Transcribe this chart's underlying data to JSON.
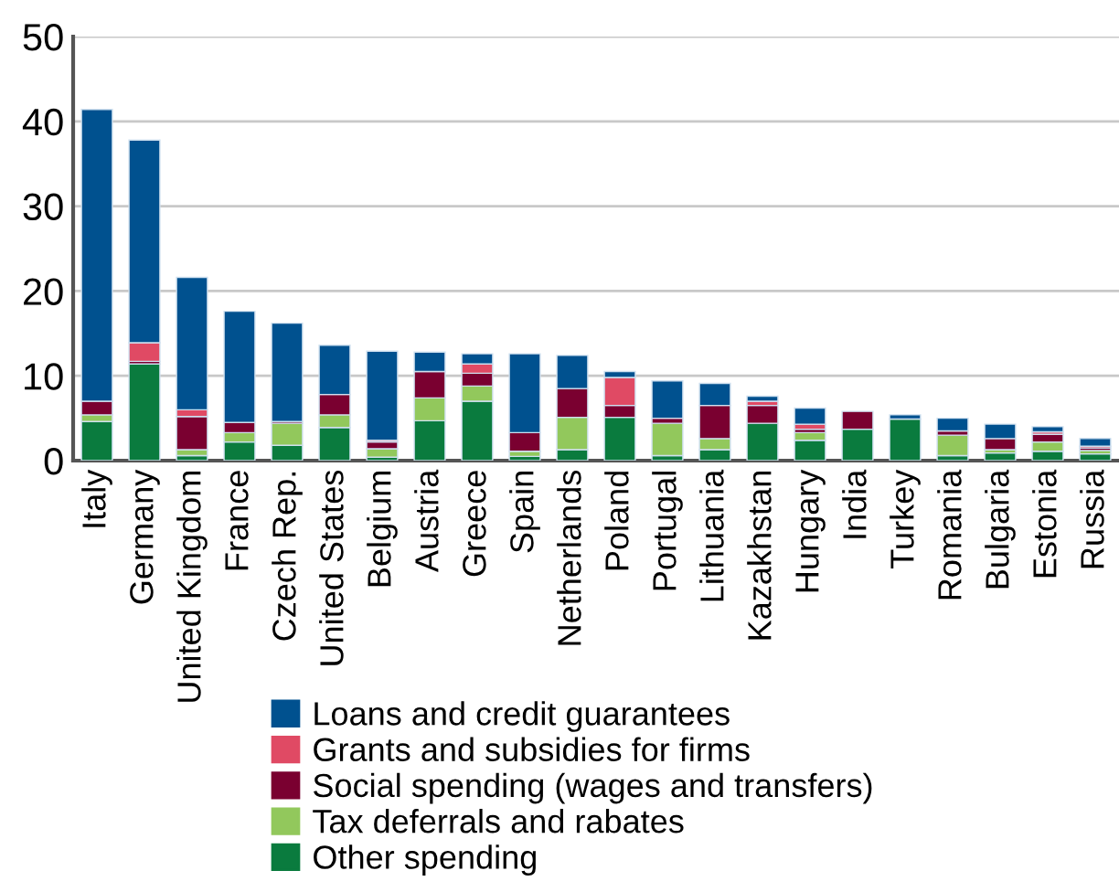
{
  "chart_data": {
    "type": "bar",
    "stacked": true,
    "categories": [
      "Italy",
      "Germany",
      "United Kingdom",
      "France",
      "Czech Rep.",
      "United States",
      "Belgium",
      "Austria",
      "Greece",
      "Spain",
      "Netherlands",
      "Poland",
      "Portugal",
      "Lithuania",
      "Kazakhstan",
      "Hungary",
      "India",
      "Turkey",
      "Romania",
      "Bulgaria",
      "Estonia",
      "Russia"
    ],
    "series": [
      {
        "name": "Other spending",
        "color": "#0a7b3e",
        "values": [
          4.6,
          11.4,
          0.6,
          2.2,
          1.8,
          3.9,
          0.4,
          4.7,
          7.0,
          0.5,
          1.3,
          5.1,
          0.6,
          1.3,
          4.4,
          2.4,
          3.7,
          4.9,
          0.6,
          0.9,
          1.1,
          0.8
        ]
      },
      {
        "name": "Tax deferrals and rabates",
        "color": "#92c85c",
        "values": [
          0.8,
          0,
          0.7,
          1.1,
          2.6,
          1.5,
          1.0,
          2.7,
          1.8,
          0.6,
          3.8,
          0,
          3.8,
          1.3,
          0,
          0.9,
          0,
          0,
          2.4,
          0.4,
          1.1,
          0.4
        ]
      },
      {
        "name": "Social spending (wages and transfers)",
        "color": "#7a0030",
        "values": [
          1.6,
          0.3,
          3.9,
          1.2,
          0.2,
          2.4,
          0.8,
          3.1,
          1.5,
          2.2,
          3.4,
          1.4,
          0.6,
          3.9,
          2.1,
          0.4,
          2.1,
          0,
          0.5,
          1.3,
          0.9,
          0.3
        ]
      },
      {
        "name": "Grants and subsidies for firms",
        "color": "#e04a64",
        "values": [
          0,
          2.2,
          0.8,
          0,
          0,
          null,
          0.2,
          0,
          1.1,
          0,
          0,
          3.3,
          0,
          0,
          0.5,
          0.6,
          0,
          0,
          0,
          0,
          0.3,
          0.2
        ]
      },
      {
        "name": "Loans and credit guarantees",
        "color": "#00518f",
        "values": [
          34.4,
          23.9,
          15.6,
          13.1,
          11.6,
          5.8,
          10.5,
          2.3,
          1.2,
          9.3,
          3.9,
          0.7,
          4.4,
          2.6,
          0.6,
          1.9,
          0,
          0.5,
          1.5,
          1.7,
          0.6,
          0.9
        ]
      }
    ],
    "ylim": [
      0,
      50
    ],
    "yticks": [
      0,
      10,
      20,
      30,
      40,
      50
    ],
    "grid": "y",
    "legend": "bottom"
  }
}
